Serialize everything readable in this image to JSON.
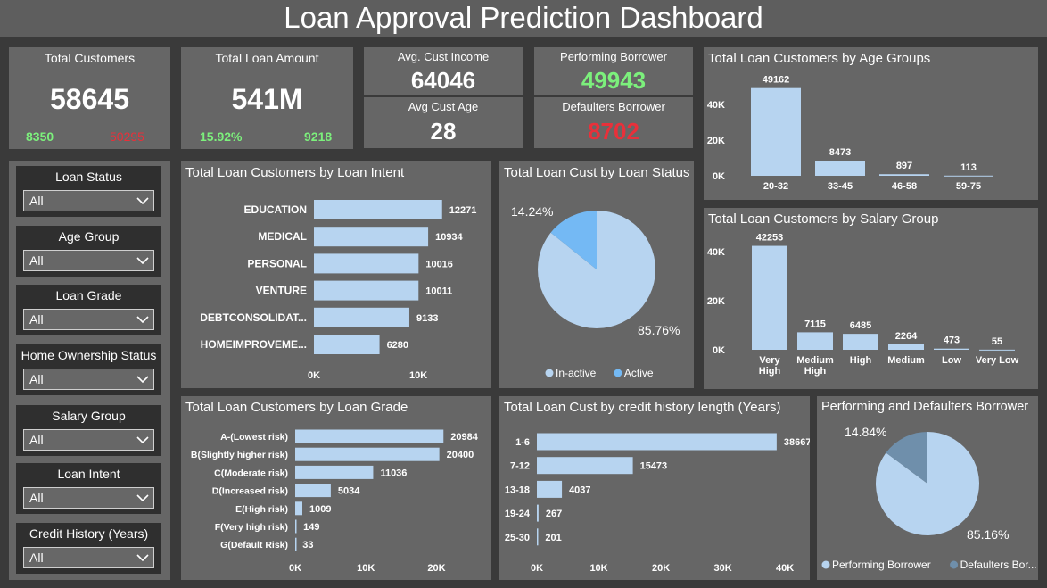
{
  "header": {
    "title": "Loan Approval Prediction Dashboard"
  },
  "kpis": {
    "total_customers": {
      "label": "Total Customers",
      "value": "58645",
      "sub_left": "8350",
      "sub_right": "50295"
    },
    "total_loan_amount": {
      "label": "Total Loan Amount",
      "value": "541M",
      "sub_left": "15.92%",
      "sub_right": "9218"
    },
    "avg_income": {
      "label": "Avg. Cust Income",
      "value": "64046"
    },
    "avg_age": {
      "label": "Avg Cust Age",
      "value": "28"
    },
    "performing": {
      "label": "Performing Borrower",
      "value": "49943"
    },
    "defaulters": {
      "label": "Defaulters Borrower",
      "value": "8702"
    }
  },
  "filters": [
    {
      "label": "Loan Status",
      "value": "All"
    },
    {
      "label": "Age Group",
      "value": "All"
    },
    {
      "label": "Loan Grade",
      "value": "All"
    },
    {
      "label": "Home Ownership Status",
      "value": "All"
    },
    {
      "label": "Salary Group",
      "value": "All"
    },
    {
      "label": "Loan Intent",
      "value": "All"
    },
    {
      "label": "Credit History (Years)",
      "value": "All"
    }
  ],
  "colors": {
    "bar": "#b7d4f0",
    "pie_active": "#74b9f4",
    "pie_defaulters": "#6f8fab",
    "card": "#666666",
    "filter_bg": "#2f2f2f"
  },
  "icons": {
    "dropdown": "chevron-down-icon"
  },
  "chart_data": [
    {
      "id": "age",
      "type": "bar",
      "title": "Total Loan Customers by Age Groups",
      "categories": [
        "20-32",
        "33-45",
        "46-58",
        "59-75"
      ],
      "values": [
        49162,
        8473,
        897,
        113
      ],
      "ylim": [
        0,
        50000
      ],
      "yticks": [
        "0K",
        "20K",
        "40K"
      ],
      "ytick_values": [
        0,
        20000,
        40000
      ]
    },
    {
      "id": "salary",
      "type": "bar",
      "title": "Total Loan Customers by Salary Group",
      "categories": [
        "Very High",
        "Medium High",
        "High",
        "Medium",
        "Low",
        "Very Low"
      ],
      "category_lines": [
        [
          "Very",
          "High"
        ],
        [
          "Medium",
          "High"
        ],
        [
          "High"
        ],
        [
          "Medium"
        ],
        [
          "Low"
        ],
        [
          "Very Low"
        ]
      ],
      "values": [
        42253,
        7115,
        6485,
        2264,
        473,
        55
      ],
      "ylim": [
        0,
        45000
      ],
      "yticks": [
        "0K",
        "20K",
        "40K"
      ],
      "ytick_values": [
        0,
        20000,
        40000
      ]
    },
    {
      "id": "intent",
      "type": "bar",
      "orientation": "horizontal",
      "title": "Total Loan Customers by Loan Intent",
      "categories": [
        "EDUCATION",
        "MEDICAL",
        "PERSONAL",
        "VENTURE",
        "DEBTCONSOLIDAT...",
        "HOMEIMPROVEME..."
      ],
      "values": [
        12271,
        10934,
        10016,
        10011,
        9133,
        6280
      ],
      "xlim": [
        0,
        14000
      ],
      "xticks": [
        "0K",
        "10K"
      ],
      "xtick_values": [
        0,
        10000
      ]
    },
    {
      "id": "grade",
      "type": "bar",
      "orientation": "horizontal",
      "title": "Total Loan Customers by Loan Grade",
      "categories": [
        "A-(Lowest risk)",
        "B(Slightly higher risk)",
        "C(Moderate risk)",
        "D(Increased risk)",
        "E(High risk)",
        "F(Very high risk)",
        "G(Default Risk)"
      ],
      "values": [
        20984,
        20400,
        11036,
        5034,
        1009,
        149,
        33
      ],
      "xlim": [
        0,
        26000
      ],
      "xticks": [
        "0K",
        "10K",
        "20K"
      ],
      "xtick_values": [
        0,
        10000,
        20000
      ]
    },
    {
      "id": "credit",
      "type": "bar",
      "orientation": "horizontal",
      "title": "Total Loan Cust by credit history length (Years)",
      "categories": [
        "1-6",
        "7-12",
        "13-18",
        "19-24",
        "25-30"
      ],
      "values": [
        38667,
        15473,
        4037,
        267,
        201
      ],
      "xlim": [
        0,
        43000
      ],
      "xticks": [
        "0K",
        "10K",
        "20K",
        "30K",
        "40K"
      ],
      "xtick_values": [
        0,
        10000,
        20000,
        30000,
        40000
      ]
    },
    {
      "id": "status",
      "type": "pie",
      "title": "Total Loan Cust by Loan Status",
      "labels": [
        "In-active",
        "Active"
      ],
      "values": [
        85.76,
        14.24
      ],
      "value_labels": [
        "85.76%",
        "14.24%"
      ],
      "legend": "bottom"
    },
    {
      "id": "perf",
      "type": "pie",
      "title": "Performing and Defaulters Borrower",
      "labels": [
        "Performing Borrower",
        "Defaulters Bor..."
      ],
      "values": [
        85.16,
        14.84
      ],
      "value_labels": [
        "85.16%",
        "14.84%"
      ],
      "legend": "bottom"
    }
  ]
}
